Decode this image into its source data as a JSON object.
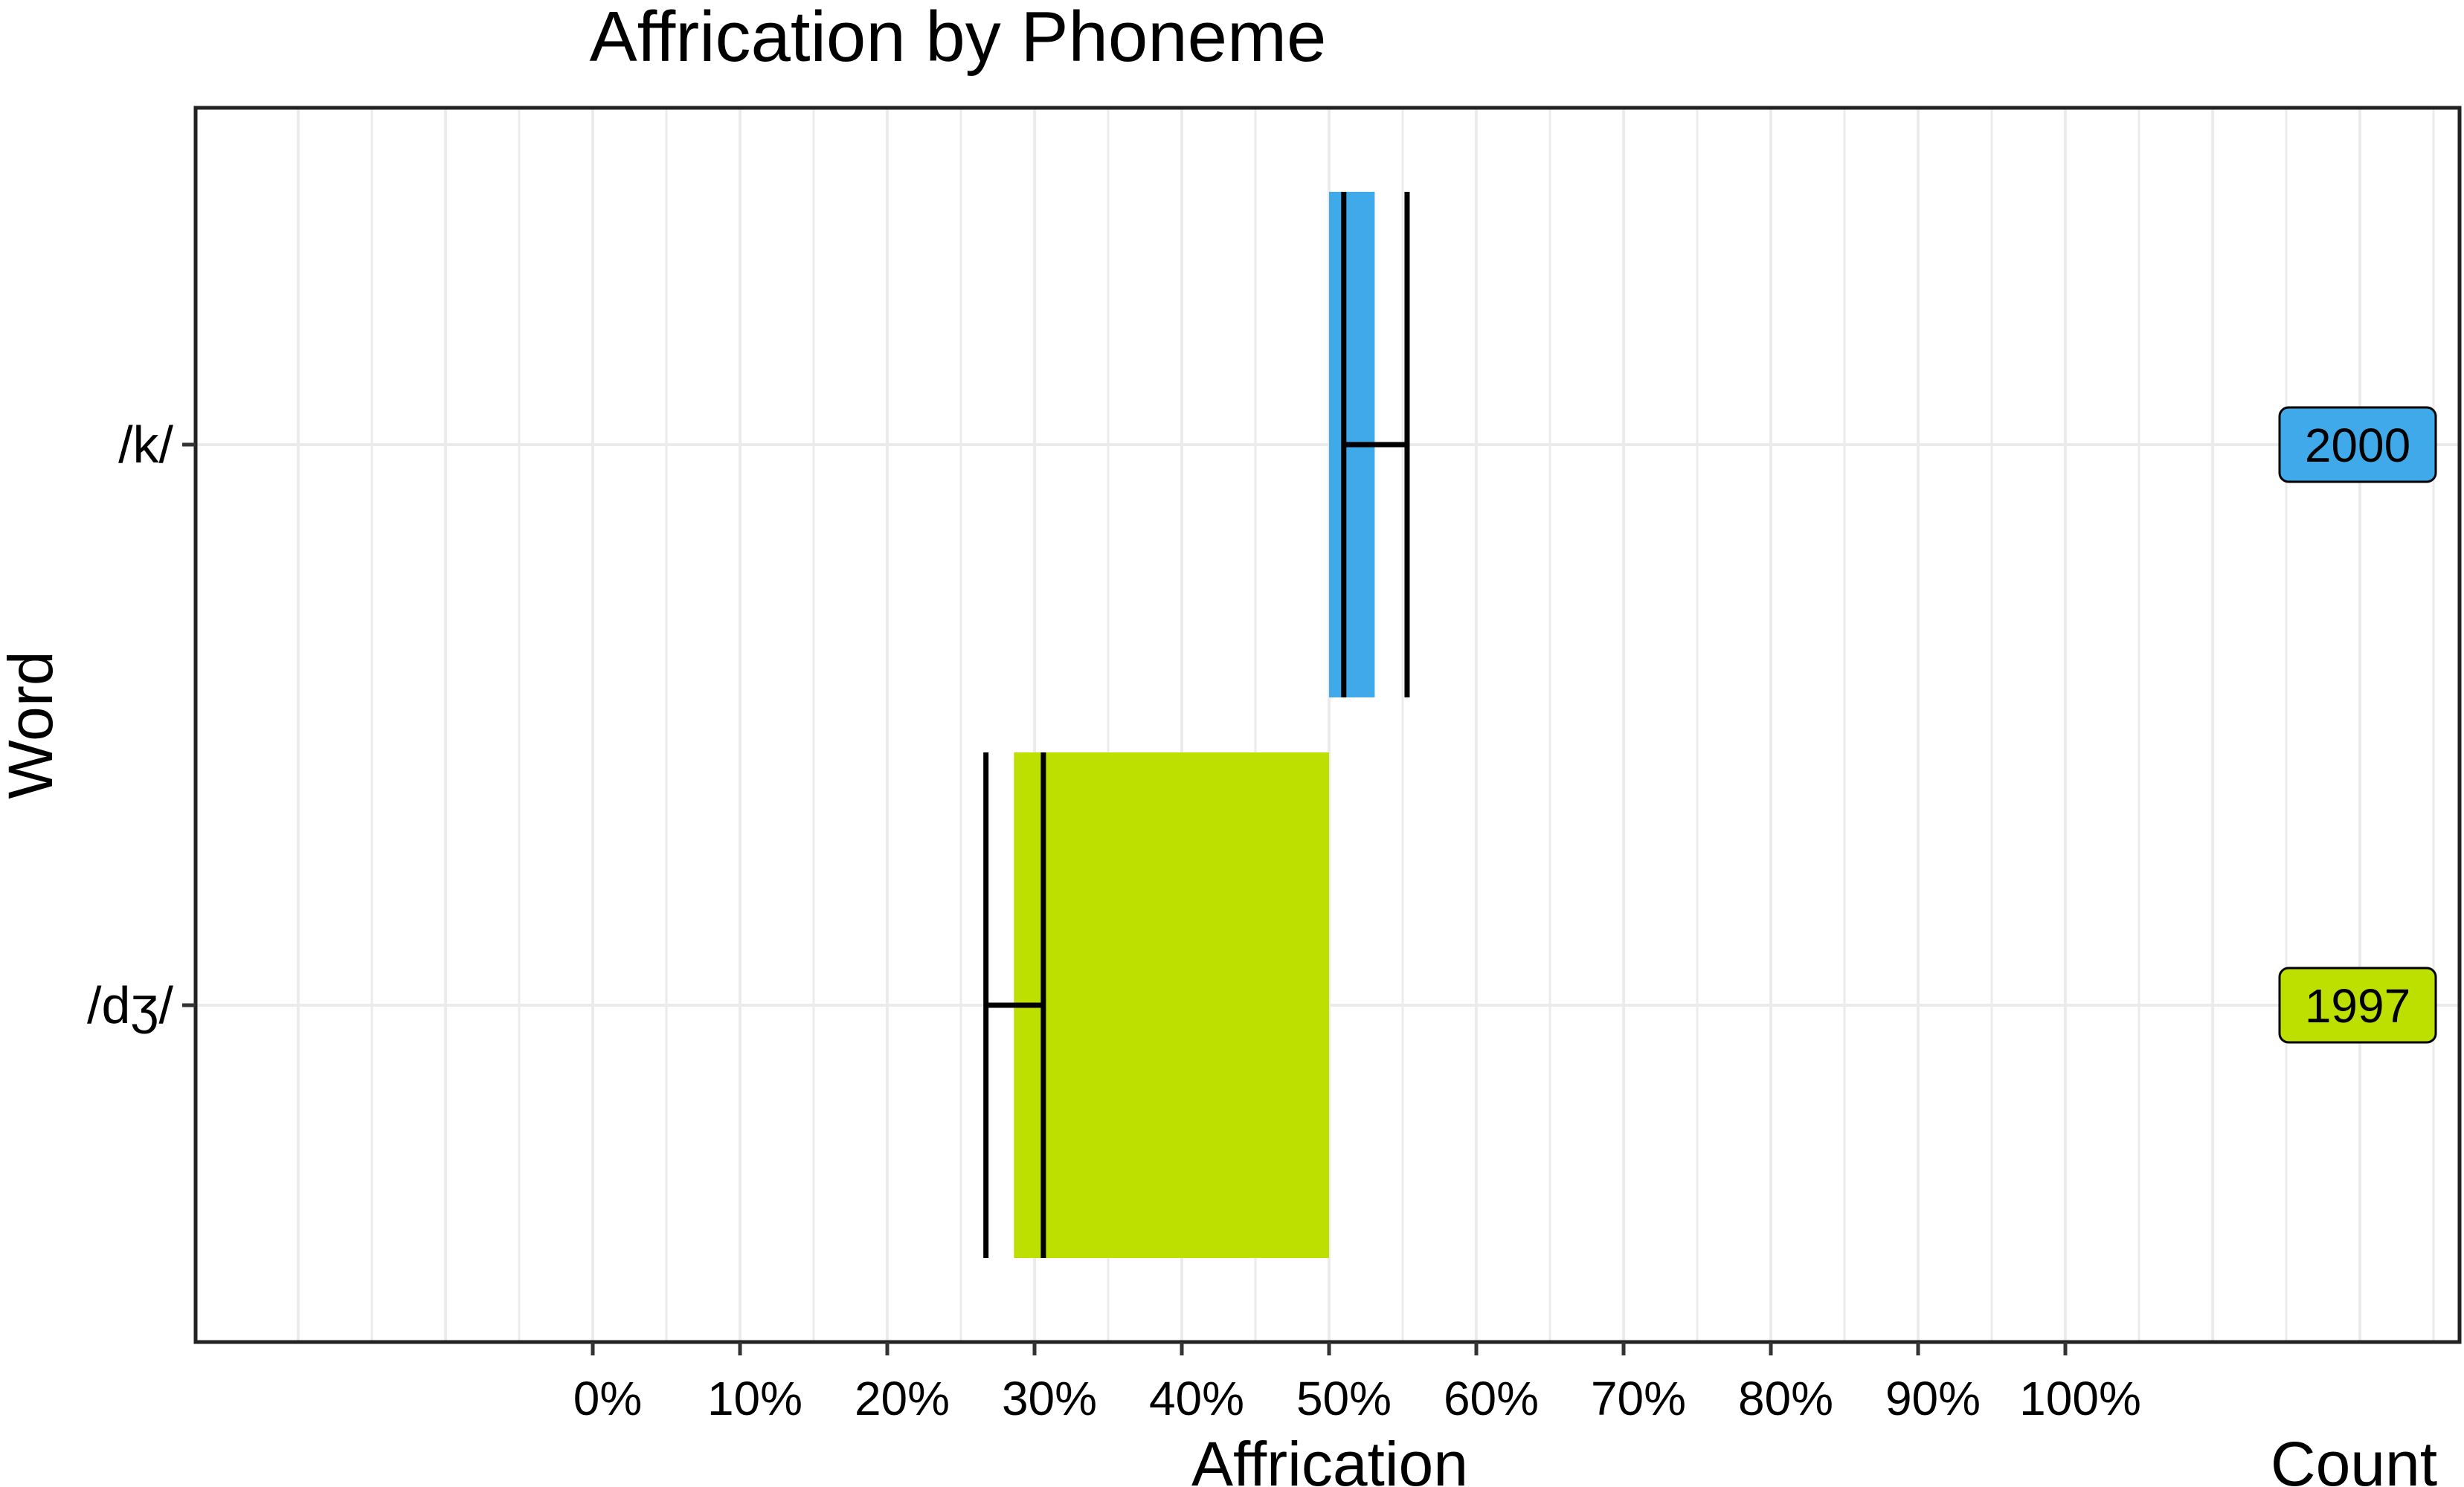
{
  "chart_data": {
    "type": "bar",
    "title": "Affrication by Phoneme",
    "xlabel": "Affrication",
    "ylabel": "Word",
    "count_label": "Count",
    "xlim": [
      -20,
      125
    ],
    "x_ticks": [
      0,
      10,
      20,
      30,
      40,
      50,
      60,
      70,
      80,
      90,
      100
    ],
    "x_tick_labels": [
      "0%",
      "10%",
      "20%",
      "30%",
      "40%",
      "50%",
      "60%",
      "70%",
      "80%",
      "90%",
      "100%"
    ],
    "grid": true,
    "categories": [
      "/k/",
      "/dʒ/"
    ],
    "bars": [
      {
        "category": "/k/",
        "start": 50,
        "end": 53.1,
        "mean": 51.0,
        "ci_low": 51.0,
        "ci_high": 55.3,
        "count": "2000",
        "color": "#3fa9e9"
      },
      {
        "category": "/dʒ/",
        "start": 28.6,
        "end": 50,
        "mean": 30.6,
        "ci_low": 26.7,
        "ci_high": 30.6,
        "count": "1997",
        "color": "#bee000"
      }
    ]
  }
}
